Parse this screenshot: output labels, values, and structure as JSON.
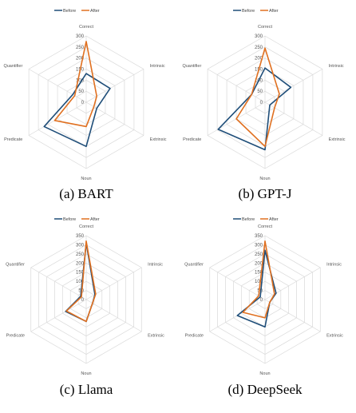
{
  "chart_data": [
    {
      "type": "radar",
      "caption": "(a) BART",
      "axes": [
        "Correct",
        "Intrinsic",
        "Extrinsic",
        "Noun",
        "Predicate",
        "Quantifier"
      ],
      "ticks": [
        0,
        50,
        100,
        150,
        200,
        250,
        300
      ],
      "rmax": 300,
      "legend": {
        "placement": "top"
      },
      "series": [
        {
          "name": "Before",
          "color": "#1f4e79",
          "values": [
            130,
            125,
            55,
            200,
            220,
            70
          ]
        },
        {
          "name": "After",
          "color": "#e07020",
          "values": [
            275,
            55,
            40,
            110,
            165,
            60
          ]
        }
      ]
    },
    {
      "type": "radar",
      "caption": "(b) GPT-J",
      "axes": [
        "Correct",
        "Intrinsic",
        "Extrinsic",
        "Noun",
        "Predicate",
        "Quantifier"
      ],
      "ticks": [
        0,
        50,
        100,
        150,
        200,
        250,
        300
      ],
      "rmax": 300,
      "legend": {
        "placement": "top"
      },
      "series": [
        {
          "name": "Before",
          "color": "#1f4e79",
          "values": [
            155,
            135,
            25,
            215,
            245,
            70
          ]
        },
        {
          "name": "After",
          "color": "#e07020",
          "values": [
            245,
            75,
            50,
            200,
            150,
            70
          ]
        }
      ]
    },
    {
      "type": "radar",
      "caption": "(c) Llama",
      "axes": [
        "Correct",
        "Intrinsic",
        "Extrinsic",
        "Noun",
        "Predicate",
        "Quantifier"
      ],
      "ticks": [
        0,
        50,
        100,
        150,
        200,
        250,
        300,
        350
      ],
      "rmax": 350,
      "legend": {
        "placement": "top"
      },
      "series": [
        {
          "name": "Before",
          "color": "#1f4e79",
          "values": [
            310,
            55,
            40,
            120,
            130,
            35
          ]
        },
        {
          "name": "After",
          "color": "#e07020",
          "values": [
            320,
            60,
            40,
            120,
            125,
            30
          ]
        }
      ]
    },
    {
      "type": "radar",
      "caption": "(d) DeepSeek",
      "axes": [
        "Correct",
        "Intrinsic",
        "Extrinsic",
        "Noun",
        "Predicate",
        "Quantifier"
      ],
      "ticks": [
        0,
        50,
        100,
        150,
        200,
        250,
        300,
        350
      ],
      "rmax": 350,
      "legend": {
        "placement": "top"
      },
      "series": [
        {
          "name": "Before",
          "color": "#1f4e79",
          "values": [
            270,
            70,
            30,
            150,
            175,
            30
          ]
        },
        {
          "name": "After",
          "color": "#e07020",
          "values": [
            320,
            60,
            30,
            100,
            140,
            40
          ]
        }
      ]
    }
  ]
}
